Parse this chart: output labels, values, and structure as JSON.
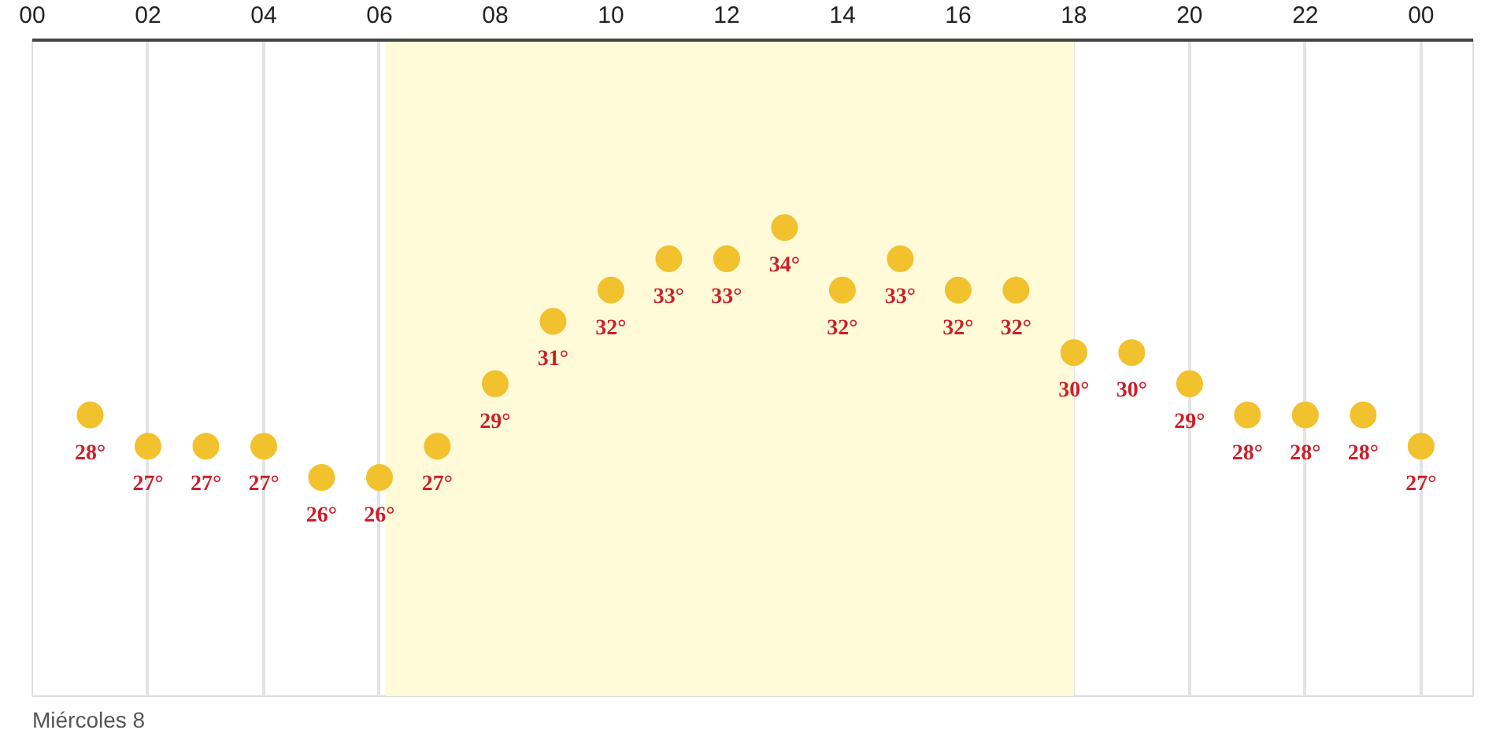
{
  "chart_data": {
    "type": "scatter",
    "x": [
      1,
      2,
      3,
      4,
      5,
      6,
      7,
      8,
      9,
      10,
      11,
      12,
      13,
      14,
      15,
      16,
      17,
      18,
      19,
      20,
      21,
      22,
      23,
      24
    ],
    "values": [
      28,
      27,
      27,
      27,
      26,
      26,
      27,
      29,
      31,
      32,
      33,
      33,
      34,
      32,
      33,
      32,
      32,
      30,
      30,
      29,
      28,
      28,
      28,
      27
    ],
    "value_labels": [
      "28°",
      "27°",
      "27°",
      "27°",
      "26°",
      "26°",
      "27°",
      "29°",
      "31°",
      "32°",
      "33°",
      "33°",
      "34°",
      "32°",
      "33°",
      "32°",
      "32°",
      "30°",
      "30°",
      "29°",
      "28°",
      "28°",
      "28°",
      "27°"
    ],
    "color": "#f2c12e",
    "marker": "circle",
    "ylim": [
      19,
      40
    ],
    "tick_labels": "x",
    "xlim": [
      0,
      24.9
    ],
    "xticks": [
      {
        "value": 0,
        "label": "00"
      },
      {
        "value": 2,
        "label": "02"
      },
      {
        "value": 4,
        "label": "04"
      },
      {
        "value": 6,
        "label": "06"
      },
      {
        "value": 8,
        "label": "08"
      },
      {
        "value": 10,
        "label": "10"
      },
      {
        "value": 12,
        "label": "12"
      },
      {
        "value": 14,
        "label": "14"
      },
      {
        "value": 16,
        "label": "16"
      },
      {
        "value": 18,
        "label": "18"
      },
      {
        "value": 20,
        "label": "20"
      },
      {
        "value": 22,
        "label": "22"
      },
      {
        "value": 24,
        "label": "00"
      }
    ],
    "grid": "x",
    "bands": [
      {
        "axis": "x",
        "from": 6.1,
        "to": 18,
        "color": "#fffbd9"
      }
    ],
    "annotations": [
      "Miércoles 8"
    ]
  }
}
